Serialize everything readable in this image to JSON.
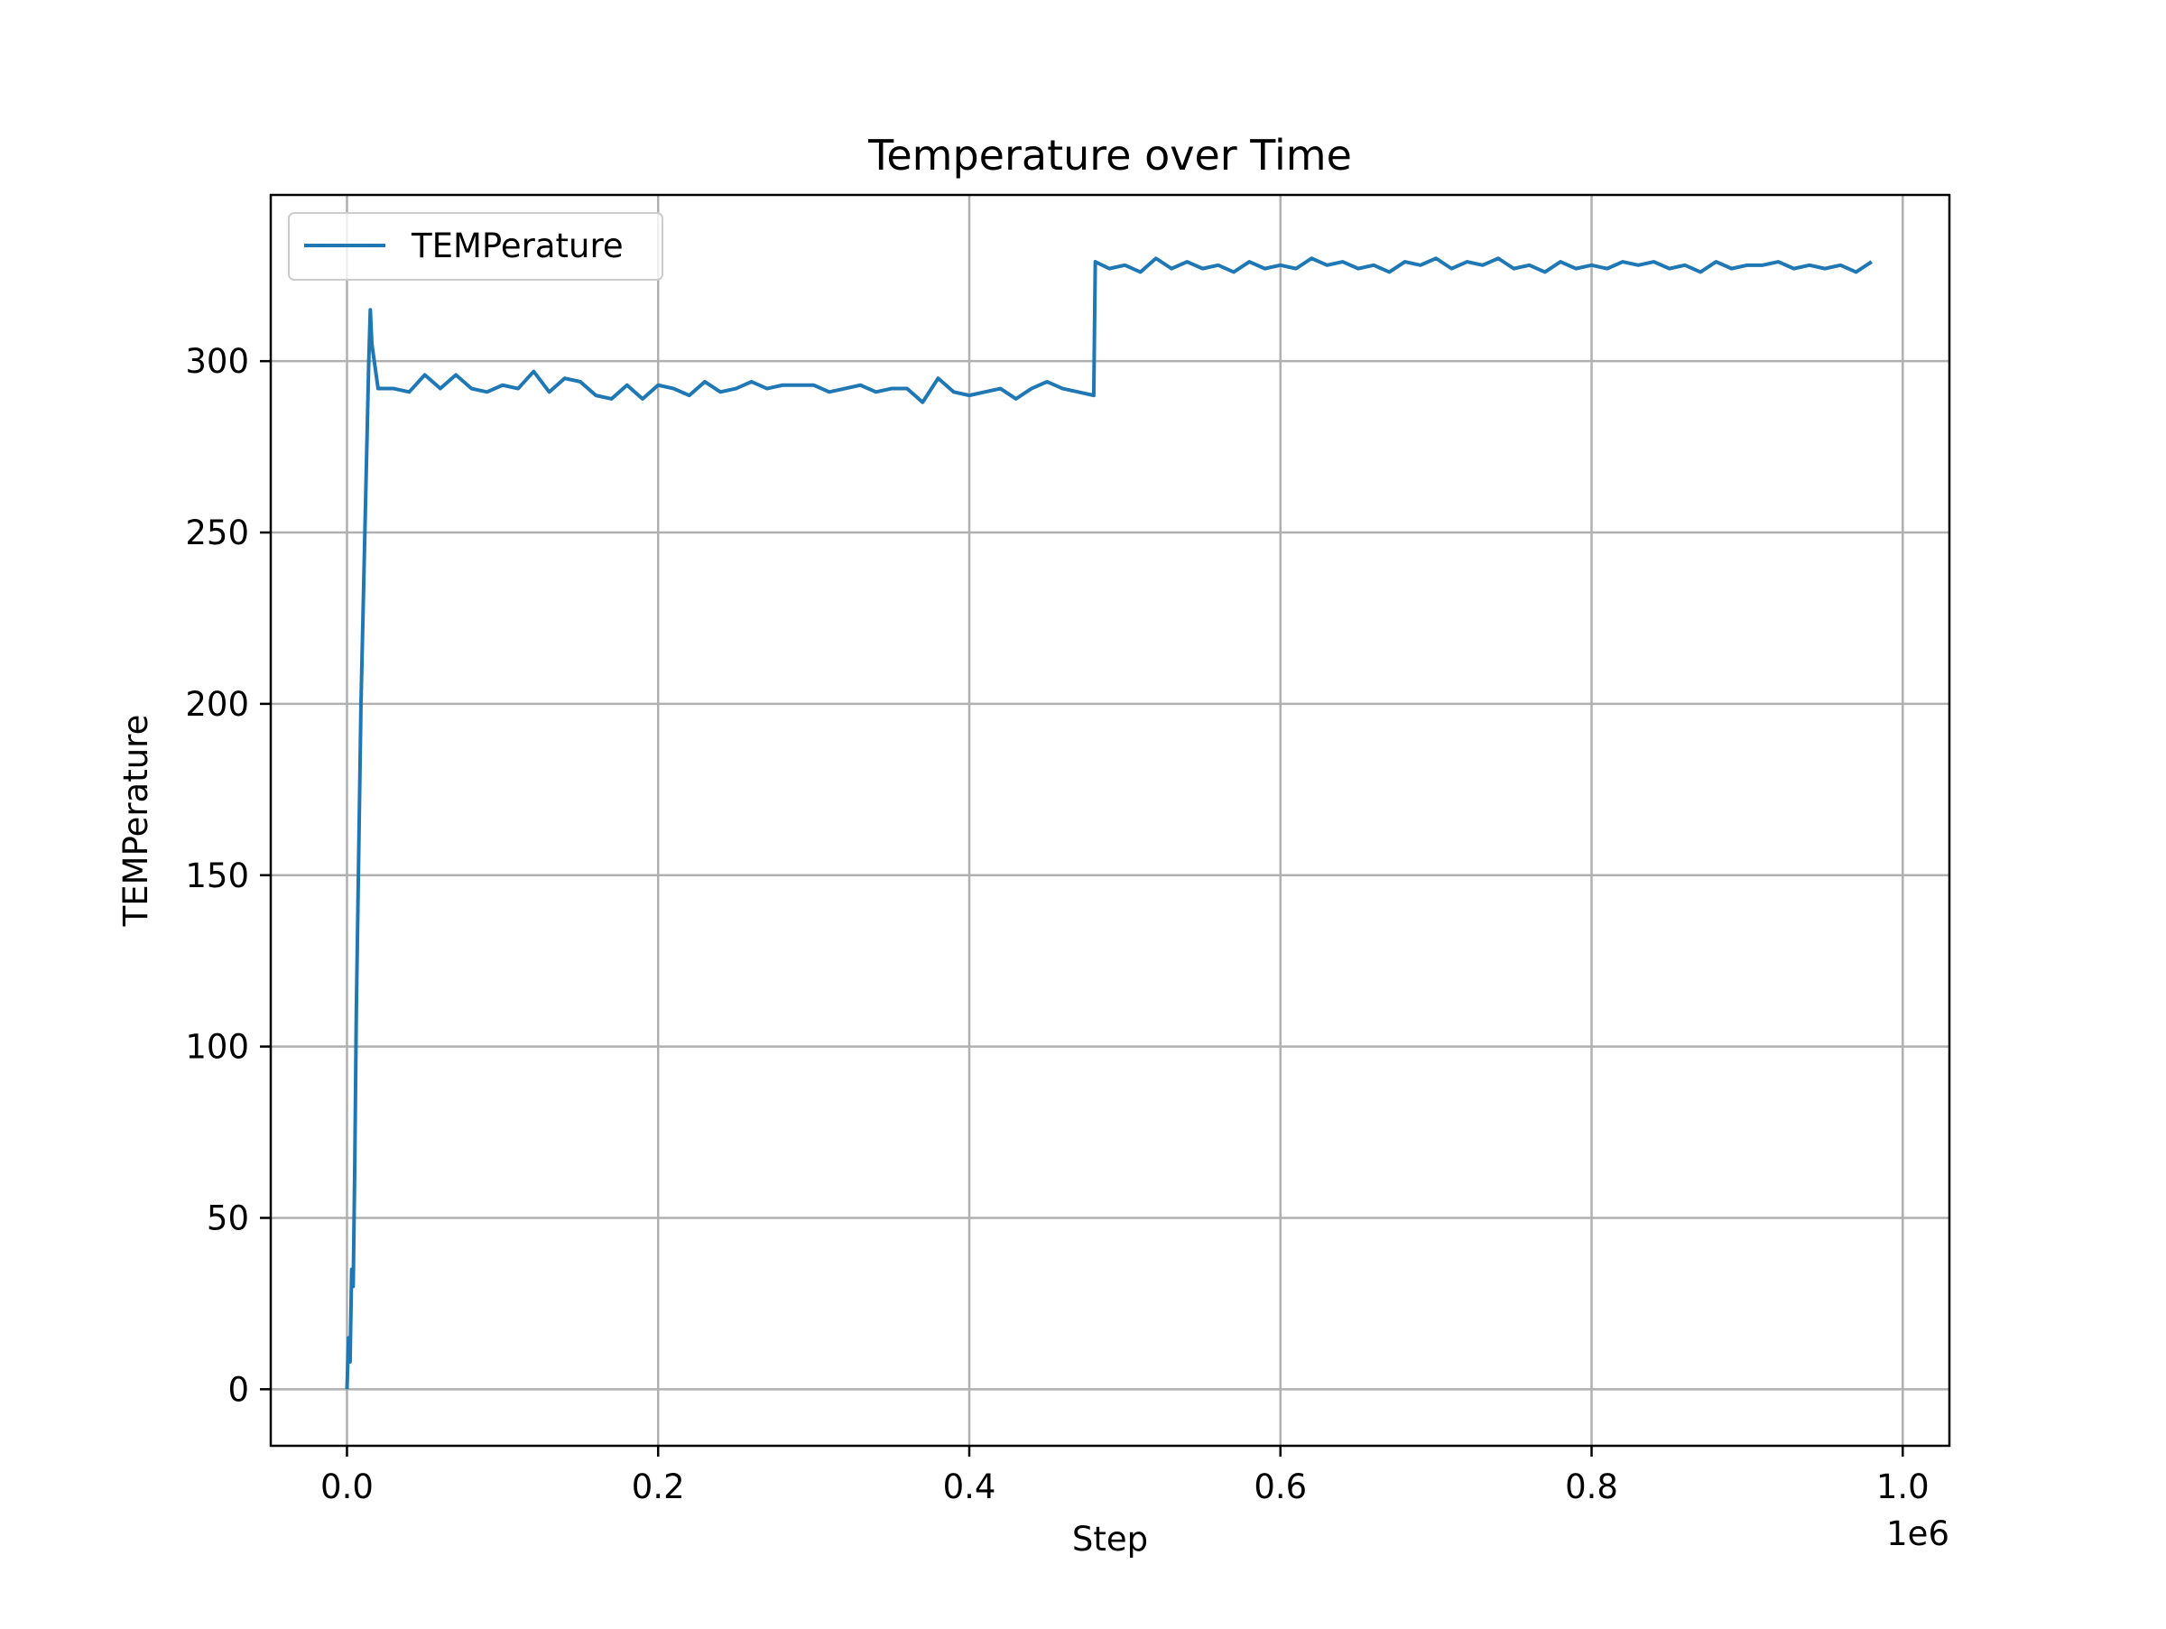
{
  "chart_data": {
    "type": "line",
    "title": "Temperature over Time",
    "xlabel": "Step",
    "ylabel": "TEMPerature",
    "x_offset_label": "1e6",
    "xlim": [
      -0.049,
      1.03
    ],
    "ylim": [
      -16.5,
      348.5
    ],
    "x_ticks": [
      0.0,
      0.2,
      0.4,
      0.6,
      0.8,
      1.0
    ],
    "x_tick_labels": [
      "0.0",
      "0.2",
      "0.4",
      "0.6",
      "0.8",
      "1.0"
    ],
    "y_ticks": [
      0,
      50,
      100,
      150,
      200,
      250,
      300
    ],
    "y_tick_labels": [
      "0",
      "50",
      "100",
      "150",
      "200",
      "250",
      "300"
    ],
    "grid": true,
    "legend_position": "upper left",
    "colors": {
      "series": "#1f77b4",
      "grid": "#b0b0b0",
      "frame": "#000000"
    },
    "series": [
      {
        "name": "TEMPerature",
        "x": [
          0.0,
          0.001,
          0.002,
          0.003,
          0.004,
          0.005,
          0.006,
          0.007,
          0.008,
          0.009,
          0.01,
          0.011,
          0.012,
          0.013,
          0.014,
          0.015,
          0.016,
          0.02,
          0.03,
          0.04,
          0.05,
          0.06,
          0.07,
          0.08,
          0.09,
          0.1,
          0.11,
          0.12,
          0.13,
          0.14,
          0.15,
          0.16,
          0.17,
          0.18,
          0.19,
          0.2,
          0.21,
          0.22,
          0.23,
          0.24,
          0.25,
          0.26,
          0.27,
          0.28,
          0.29,
          0.3,
          0.31,
          0.32,
          0.33,
          0.34,
          0.35,
          0.36,
          0.37,
          0.38,
          0.39,
          0.4,
          0.41,
          0.42,
          0.43,
          0.44,
          0.45,
          0.46,
          0.47,
          0.48,
          0.481,
          0.49,
          0.5,
          0.51,
          0.52,
          0.53,
          0.54,
          0.55,
          0.56,
          0.57,
          0.58,
          0.59,
          0.6,
          0.61,
          0.62,
          0.63,
          0.64,
          0.65,
          0.66,
          0.67,
          0.68,
          0.69,
          0.7,
          0.71,
          0.72,
          0.73,
          0.74,
          0.75,
          0.76,
          0.77,
          0.78,
          0.79,
          0.8,
          0.81,
          0.82,
          0.83,
          0.84,
          0.85,
          0.86,
          0.87,
          0.88,
          0.89,
          0.9,
          0.91,
          0.92,
          0.93,
          0.94,
          0.95,
          0.96,
          0.97,
          0.98
        ],
        "y": [
          0,
          15,
          8,
          35,
          30,
          65,
          110,
          140,
          170,
          200,
          220,
          240,
          260,
          280,
          300,
          315,
          305,
          292,
          292,
          291,
          296,
          292,
          296,
          292,
          291,
          293,
          292,
          297,
          291,
          295,
          294,
          290,
          289,
          293,
          289,
          293,
          292,
          290,
          294,
          291,
          292,
          294,
          292,
          293,
          293,
          293,
          291,
          292,
          293,
          291,
          292,
          292,
          288,
          295,
          291,
          290,
          291,
          292,
          289,
          292,
          294,
          292,
          291,
          290,
          329,
          327,
          328,
          326,
          330,
          327,
          329,
          327,
          328,
          326,
          329,
          327,
          328,
          327,
          330,
          328,
          329,
          327,
          328,
          326,
          329,
          328,
          330,
          327,
          329,
          328,
          330,
          327,
          328,
          326,
          329,
          327,
          328,
          327,
          329,
          328,
          329,
          327,
          328,
          326,
          329,
          327,
          328,
          328,
          329,
          327,
          328,
          327,
          328,
          326,
          329
        ]
      }
    ]
  }
}
